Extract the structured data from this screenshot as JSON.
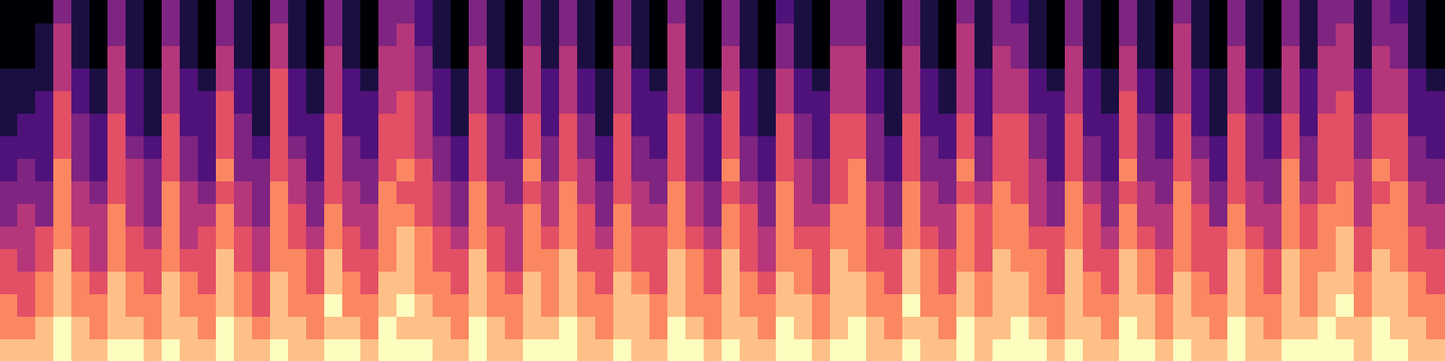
{
  "chart_data": {
    "type": "heatmap",
    "tick_labels": false,
    "cells": [
      [
        1,
        1,
        1,
        4,
        2,
        1,
        4,
        2,
        1,
        4,
        2,
        1,
        4,
        2,
        1,
        4,
        2,
        1,
        4,
        2,
        1,
        4,
        4,
        3,
        2,
        1,
        4,
        2,
        1,
        4,
        2,
        4,
        2,
        1,
        4,
        2,
        1,
        4,
        2,
        1,
        4,
        2,
        1,
        3,
        2,
        1,
        4,
        4,
        2,
        1,
        4,
        2,
        1,
        4,
        2,
        4,
        3,
        2,
        1,
        4,
        2,
        1,
        4,
        2,
        1,
        4,
        2,
        1,
        4,
        2,
        1,
        4,
        2,
        4,
        4,
        2,
        4,
        3,
        2,
        1
      ],
      [
        1,
        1,
        2,
        5,
        2,
        1,
        4,
        2,
        1,
        4,
        2,
        1,
        4,
        2,
        1,
        5,
        2,
        1,
        4,
        2,
        1,
        4,
        5,
        3,
        2,
        1,
        4,
        2,
        1,
        4,
        2,
        4,
        2,
        1,
        4,
        2,
        1,
        5,
        2,
        1,
        4,
        2,
        1,
        4,
        2,
        1,
        4,
        4,
        2,
        1,
        4,
        2,
        1,
        5,
        2,
        4,
        4,
        2,
        1,
        4,
        2,
        1,
        4,
        2,
        1,
        5,
        2,
        1,
        4,
        2,
        1,
        4,
        2,
        4,
        5,
        2,
        4,
        4,
        2,
        1
      ],
      [
        1,
        1,
        2,
        5,
        2,
        1,
        5,
        2,
        1,
        5,
        2,
        1,
        5,
        2,
        1,
        5,
        2,
        1,
        5,
        2,
        1,
        5,
        5,
        4,
        2,
        1,
        5,
        2,
        1,
        5,
        2,
        5,
        2,
        1,
        5,
        2,
        1,
        5,
        2,
        1,
        5,
        2,
        1,
        4,
        2,
        1,
        5,
        5,
        2,
        1,
        5,
        2,
        1,
        5,
        2,
        5,
        4,
        2,
        1,
        5,
        2,
        1,
        5,
        2,
        1,
        5,
        2,
        1,
        5,
        2,
        1,
        5,
        2,
        5,
        5,
        2,
        5,
        4,
        2,
        1
      ],
      [
        2,
        2,
        2,
        5,
        3,
        2,
        5,
        3,
        2,
        5,
        3,
        2,
        5,
        3,
        2,
        6,
        3,
        2,
        5,
        3,
        2,
        5,
        5,
        4,
        3,
        2,
        5,
        3,
        2,
        5,
        3,
        5,
        3,
        2,
        5,
        3,
        2,
        5,
        3,
        2,
        5,
        3,
        2,
        5,
        3,
        2,
        5,
        5,
        3,
        2,
        5,
        3,
        2,
        5,
        3,
        5,
        5,
        3,
        2,
        5,
        3,
        2,
        5,
        3,
        2,
        5,
        3,
        2,
        5,
        3,
        2,
        5,
        3,
        5,
        5,
        3,
        5,
        5,
        3,
        2
      ],
      [
        2,
        2,
        3,
        6,
        3,
        2,
        5,
        3,
        2,
        5,
        3,
        3,
        6,
        3,
        2,
        6,
        3,
        2,
        5,
        3,
        3,
        5,
        6,
        5,
        3,
        2,
        5,
        3,
        2,
        5,
        3,
        5,
        3,
        2,
        5,
        3,
        3,
        5,
        3,
        2,
        6,
        3,
        2,
        5,
        3,
        3,
        5,
        5,
        3,
        2,
        5,
        3,
        2,
        5,
        3,
        5,
        5,
        3,
        3,
        5,
        3,
        2,
        6,
        3,
        2,
        5,
        3,
        2,
        5,
        3,
        2,
        5,
        3,
        5,
        6,
        3,
        5,
        5,
        3,
        3
      ],
      [
        2,
        3,
        3,
        6,
        4,
        3,
        6,
        3,
        2,
        6,
        3,
        3,
        6,
        4,
        2,
        6,
        3,
        3,
        6,
        3,
        3,
        6,
        6,
        5,
        3,
        2,
        6,
        4,
        3,
        6,
        3,
        6,
        4,
        2,
        6,
        3,
        3,
        6,
        4,
        3,
        6,
        3,
        2,
        6,
        4,
        3,
        6,
        6,
        4,
        2,
        6,
        3,
        3,
        6,
        3,
        6,
        6,
        4,
        3,
        6,
        3,
        3,
        6,
        4,
        3,
        6,
        3,
        2,
        6,
        4,
        3,
        6,
        3,
        6,
        6,
        4,
        6,
        6,
        3,
        3
      ],
      [
        3,
        3,
        3,
        6,
        4,
        3,
        6,
        4,
        3,
        6,
        4,
        3,
        6,
        4,
        3,
        6,
        4,
        3,
        6,
        4,
        3,
        6,
        6,
        5,
        4,
        3,
        6,
        4,
        3,
        6,
        4,
        6,
        4,
        3,
        6,
        4,
        3,
        6,
        4,
        3,
        6,
        4,
        3,
        6,
        4,
        3,
        6,
        6,
        4,
        3,
        6,
        4,
        3,
        6,
        4,
        6,
        6,
        4,
        3,
        6,
        4,
        3,
        6,
        4,
        3,
        6,
        4,
        3,
        6,
        4,
        3,
        6,
        4,
        6,
        6,
        4,
        6,
        6,
        4,
        3
      ],
      [
        3,
        4,
        3,
        7,
        4,
        3,
        6,
        5,
        4,
        6,
        4,
        3,
        7,
        4,
        4,
        6,
        5,
        3,
        6,
        4,
        4,
        6,
        7,
        6,
        4,
        3,
        6,
        4,
        4,
        7,
        4,
        6,
        5,
        3,
        6,
        4,
        4,
        6,
        4,
        3,
        7,
        4,
        3,
        6,
        5,
        4,
        6,
        7,
        4,
        3,
        6,
        4,
        4,
        7,
        4,
        6,
        6,
        5,
        3,
        6,
        4,
        3,
        7,
        4,
        4,
        6,
        5,
        3,
        6,
        4,
        4,
        7,
        4,
        6,
        6,
        5,
        7,
        6,
        4,
        4
      ],
      [
        4,
        4,
        4,
        7,
        5,
        4,
        6,
        5,
        4,
        7,
        5,
        4,
        6,
        5,
        4,
        7,
        5,
        4,
        6,
        5,
        4,
        7,
        6,
        6,
        5,
        4,
        7,
        5,
        4,
        6,
        5,
        7,
        5,
        4,
        6,
        5,
        4,
        7,
        5,
        4,
        6,
        5,
        4,
        7,
        5,
        4,
        6,
        7,
        5,
        4,
        7,
        5,
        4,
        6,
        5,
        7,
        6,
        5,
        4,
        7,
        5,
        4,
        6,
        5,
        4,
        7,
        5,
        4,
        6,
        5,
        4,
        7,
        5,
        6,
        7,
        5,
        6,
        7,
        5,
        4
      ],
      [
        4,
        5,
        4,
        7,
        5,
        5,
        7,
        5,
        4,
        7,
        5,
        5,
        7,
        5,
        4,
        7,
        6,
        4,
        7,
        5,
        5,
        7,
        7,
        6,
        5,
        4,
        7,
        5,
        5,
        7,
        5,
        7,
        6,
        4,
        7,
        5,
        5,
        7,
        5,
        4,
        7,
        6,
        4,
        7,
        5,
        5,
        7,
        7,
        5,
        4,
        7,
        5,
        5,
        7,
        6,
        7,
        7,
        5,
        4,
        7,
        6,
        4,
        7,
        5,
        5,
        7,
        6,
        4,
        7,
        5,
        5,
        7,
        6,
        7,
        7,
        5,
        7,
        7,
        5,
        5
      ],
      [
        5,
        5,
        6,
        7,
        6,
        5,
        7,
        6,
        5,
        7,
        5,
        6,
        7,
        6,
        5,
        7,
        6,
        5,
        7,
        6,
        5,
        7,
        8,
        7,
        6,
        5,
        7,
        6,
        5,
        7,
        6,
        7,
        6,
        5,
        7,
        6,
        6,
        7,
        6,
        5,
        7,
        6,
        5,
        7,
        6,
        6,
        7,
        7,
        6,
        5,
        7,
        6,
        5,
        7,
        6,
        7,
        7,
        6,
        6,
        7,
        6,
        5,
        7,
        6,
        5,
        7,
        6,
        6,
        7,
        6,
        5,
        7,
        6,
        7,
        8,
        6,
        7,
        7,
        6,
        5
      ],
      [
        6,
        5,
        6,
        8,
        6,
        5,
        7,
        6,
        6,
        7,
        6,
        6,
        8,
        6,
        5,
        7,
        7,
        6,
        8,
        6,
        6,
        7,
        8,
        7,
        6,
        6,
        8,
        6,
        5,
        7,
        7,
        8,
        6,
        6,
        7,
        6,
        6,
        8,
        7,
        6,
        8,
        6,
        5,
        7,
        7,
        6,
        8,
        7,
        6,
        6,
        8,
        7,
        6,
        7,
        6,
        8,
        7,
        7,
        6,
        8,
        6,
        6,
        8,
        7,
        6,
        7,
        6,
        6,
        8,
        7,
        6,
        8,
        7,
        7,
        8,
        6,
        8,
        7,
        6,
        6
      ],
      [
        6,
        6,
        7,
        8,
        7,
        6,
        8,
        7,
        6,
        8,
        7,
        6,
        8,
        7,
        6,
        8,
        7,
        6,
        8,
        7,
        6,
        8,
        8,
        7,
        7,
        6,
        8,
        7,
        6,
        8,
        7,
        8,
        7,
        6,
        8,
        7,
        6,
        8,
        7,
        6,
        8,
        7,
        6,
        8,
        7,
        6,
        8,
        8,
        7,
        6,
        8,
        7,
        6,
        8,
        7,
        8,
        8,
        7,
        6,
        8,
        7,
        6,
        8,
        7,
        6,
        8,
        7,
        6,
        8,
        7,
        6,
        8,
        7,
        8,
        8,
        7,
        8,
        8,
        7,
        6
      ],
      [
        7,
        6,
        7,
        8,
        7,
        7,
        8,
        7,
        7,
        8,
        7,
        7,
        8,
        7,
        6,
        8,
        7,
        7,
        9,
        7,
        7,
        8,
        9,
        8,
        7,
        7,
        8,
        7,
        7,
        8,
        7,
        8,
        7,
        7,
        8,
        8,
        7,
        8,
        7,
        7,
        8,
        7,
        7,
        8,
        8,
        7,
        8,
        8,
        7,
        7,
        9,
        7,
        7,
        8,
        7,
        8,
        8,
        7,
        7,
        8,
        7,
        7,
        8,
        8,
        7,
        8,
        7,
        7,
        8,
        7,
        7,
        8,
        7,
        8,
        9,
        7,
        8,
        8,
        7,
        7
      ],
      [
        7,
        7,
        8,
        9,
        8,
        7,
        8,
        8,
        7,
        8,
        8,
        7,
        9,
        8,
        7,
        8,
        8,
        7,
        8,
        8,
        7,
        9,
        8,
        8,
        8,
        7,
        9,
        8,
        7,
        8,
        8,
        9,
        8,
        7,
        8,
        8,
        7,
        9,
        8,
        7,
        8,
        8,
        7,
        9,
        8,
        7,
        8,
        9,
        8,
        7,
        8,
        8,
        7,
        9,
        8,
        8,
        9,
        8,
        7,
        8,
        8,
        7,
        9,
        8,
        7,
        8,
        8,
        7,
        9,
        8,
        7,
        8,
        8,
        9,
        8,
        8,
        9,
        8,
        8,
        7
      ],
      [
        8,
        8,
        8,
        9,
        8,
        8,
        9,
        9,
        8,
        9,
        8,
        8,
        9,
        8,
        8,
        9,
        8,
        8,
        9,
        9,
        8,
        9,
        9,
        9,
        8,
        8,
        9,
        8,
        8,
        9,
        9,
        9,
        8,
        8,
        9,
        8,
        8,
        9,
        9,
        8,
        9,
        8,
        8,
        9,
        9,
        8,
        9,
        9,
        8,
        8,
        9,
        8,
        8,
        9,
        8,
        9,
        9,
        9,
        8,
        9,
        8,
        8,
        9,
        9,
        8,
        9,
        8,
        8,
        9,
        8,
        8,
        9,
        9,
        9,
        9,
        8,
        9,
        9,
        8,
        8
      ]
    ]
  }
}
